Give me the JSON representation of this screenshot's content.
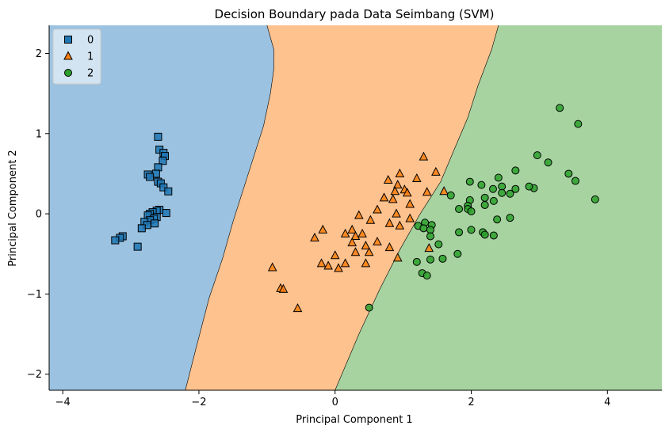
{
  "chart_data": {
    "type": "scatter",
    "title": "Decision Boundary pada Data Seimbang (SVM)",
    "xlabel": "Principal Component 1",
    "ylabel": "Principal Component 2",
    "xlim": [
      -4.2,
      4.8
    ],
    "ylim": [
      -2.2,
      2.35
    ],
    "xticks": [
      -4,
      -2,
      0,
      2,
      4
    ],
    "yticks": [
      -2,
      -1,
      0,
      1,
      2
    ],
    "grid": false,
    "legend_position": "top-left",
    "regions": [
      {
        "class": "0",
        "color": "#9bc2e0"
      },
      {
        "class": "1",
        "color": "#fec28f"
      },
      {
        "class": "2",
        "color": "#a7d3a0"
      }
    ],
    "series": [
      {
        "name": "0",
        "marker": "square",
        "color": "#1f77b4",
        "points": [
          [
            -2.6,
            0.96
          ],
          [
            -2.58,
            0.8
          ],
          [
            -2.52,
            0.76
          ],
          [
            -2.5,
            0.72
          ],
          [
            -2.53,
            0.66
          ],
          [
            -2.6,
            0.58
          ],
          [
            -2.63,
            0.5
          ],
          [
            -2.75,
            0.49
          ],
          [
            -2.72,
            0.46
          ],
          [
            -2.6,
            0.4
          ],
          [
            -2.56,
            0.38
          ],
          [
            -2.52,
            0.33
          ],
          [
            -2.45,
            0.28
          ],
          [
            -2.58,
            0.05
          ],
          [
            -2.62,
            0.04
          ],
          [
            -2.68,
            0.02
          ],
          [
            -2.72,
            0.0
          ],
          [
            -2.75,
            -0.02
          ],
          [
            -2.62,
            -0.04
          ],
          [
            -2.66,
            -0.06
          ],
          [
            -2.72,
            -0.08
          ],
          [
            -2.48,
            0.01
          ],
          [
            -2.8,
            -0.1
          ],
          [
            -2.65,
            -0.12
          ],
          [
            -2.76,
            -0.14
          ],
          [
            -2.84,
            -0.18
          ],
          [
            -3.12,
            -0.28
          ],
          [
            -3.16,
            -0.3
          ],
          [
            -3.23,
            -0.33
          ],
          [
            -2.9,
            -0.41
          ]
        ]
      },
      {
        "name": "1",
        "marker": "triangle",
        "color": "#ff7f0e",
        "points": [
          [
            1.3,
            0.71
          ],
          [
            1.48,
            0.52
          ],
          [
            0.95,
            0.5
          ],
          [
            0.78,
            0.42
          ],
          [
            1.2,
            0.44
          ],
          [
            0.92,
            0.36
          ],
          [
            1.02,
            0.3
          ],
          [
            0.88,
            0.28
          ],
          [
            1.06,
            0.26
          ],
          [
            1.35,
            0.27
          ],
          [
            0.72,
            0.2
          ],
          [
            0.85,
            0.18
          ],
          [
            1.6,
            0.28
          ],
          [
            1.1,
            0.12
          ],
          [
            0.62,
            0.05
          ],
          [
            0.35,
            -0.02
          ],
          [
            0.52,
            -0.08
          ],
          [
            0.9,
            0.0
          ],
          [
            1.1,
            -0.06
          ],
          [
            0.8,
            -0.12
          ],
          [
            0.95,
            -0.15
          ],
          [
            -0.18,
            -0.2
          ],
          [
            0.25,
            -0.2
          ],
          [
            0.15,
            -0.25
          ],
          [
            0.3,
            -0.28
          ],
          [
            0.4,
            -0.25
          ],
          [
            0.62,
            -0.35
          ],
          [
            0.25,
            -0.36
          ],
          [
            0.45,
            -0.4
          ],
          [
            0.8,
            -0.42
          ],
          [
            1.38,
            -0.43
          ],
          [
            -0.3,
            -0.3
          ],
          [
            0.3,
            -0.48
          ],
          [
            0.5,
            -0.48
          ],
          [
            0.92,
            -0.55
          ],
          [
            0.0,
            -0.52
          ],
          [
            -0.2,
            -0.62
          ],
          [
            -0.1,
            -0.65
          ],
          [
            0.15,
            -0.62
          ],
          [
            0.45,
            -0.62
          ],
          [
            0.05,
            -0.68
          ],
          [
            -0.92,
            -0.67
          ],
          [
            -0.8,
            -0.93
          ],
          [
            -0.76,
            -0.94
          ],
          [
            -0.55,
            -1.18
          ]
        ]
      },
      {
        "name": "2",
        "marker": "circle",
        "color": "#2ca02c",
        "points": [
          [
            3.3,
            1.32
          ],
          [
            3.57,
            1.12
          ],
          [
            2.97,
            0.73
          ],
          [
            3.13,
            0.64
          ],
          [
            2.65,
            0.54
          ],
          [
            3.43,
            0.5
          ],
          [
            3.53,
            0.41
          ],
          [
            2.4,
            0.45
          ],
          [
            1.98,
            0.4
          ],
          [
            2.15,
            0.36
          ],
          [
            2.45,
            0.34
          ],
          [
            2.32,
            0.31
          ],
          [
            2.92,
            0.32
          ],
          [
            2.85,
            0.34
          ],
          [
            2.65,
            0.31
          ],
          [
            2.45,
            0.26
          ],
          [
            2.57,
            0.25
          ],
          [
            1.7,
            0.23
          ],
          [
            2.2,
            0.2
          ],
          [
            1.98,
            0.17
          ],
          [
            2.33,
            0.16
          ],
          [
            3.82,
            0.18
          ],
          [
            2.2,
            0.11
          ],
          [
            1.95,
            0.1
          ],
          [
            1.95,
            0.06
          ],
          [
            1.82,
            0.06
          ],
          [
            2.0,
            0.03
          ],
          [
            2.38,
            -0.07
          ],
          [
            2.57,
            -0.05
          ],
          [
            1.32,
            -0.11
          ],
          [
            1.22,
            -0.15
          ],
          [
            1.42,
            -0.14
          ],
          [
            1.3,
            -0.18
          ],
          [
            1.4,
            -0.2
          ],
          [
            2.0,
            -0.2
          ],
          [
            1.82,
            -0.23
          ],
          [
            2.17,
            -0.23
          ],
          [
            2.2,
            -0.26
          ],
          [
            2.33,
            -0.27
          ],
          [
            1.4,
            -0.28
          ],
          [
            1.52,
            -0.38
          ],
          [
            1.8,
            -0.5
          ],
          [
            1.58,
            -0.56
          ],
          [
            1.4,
            -0.57
          ],
          [
            1.2,
            -0.6
          ],
          [
            1.28,
            -0.74
          ],
          [
            1.35,
            -0.77
          ],
          [
            0.5,
            -1.17
          ]
        ]
      }
    ],
    "legend": [
      "0",
      "1",
      "2"
    ]
  }
}
